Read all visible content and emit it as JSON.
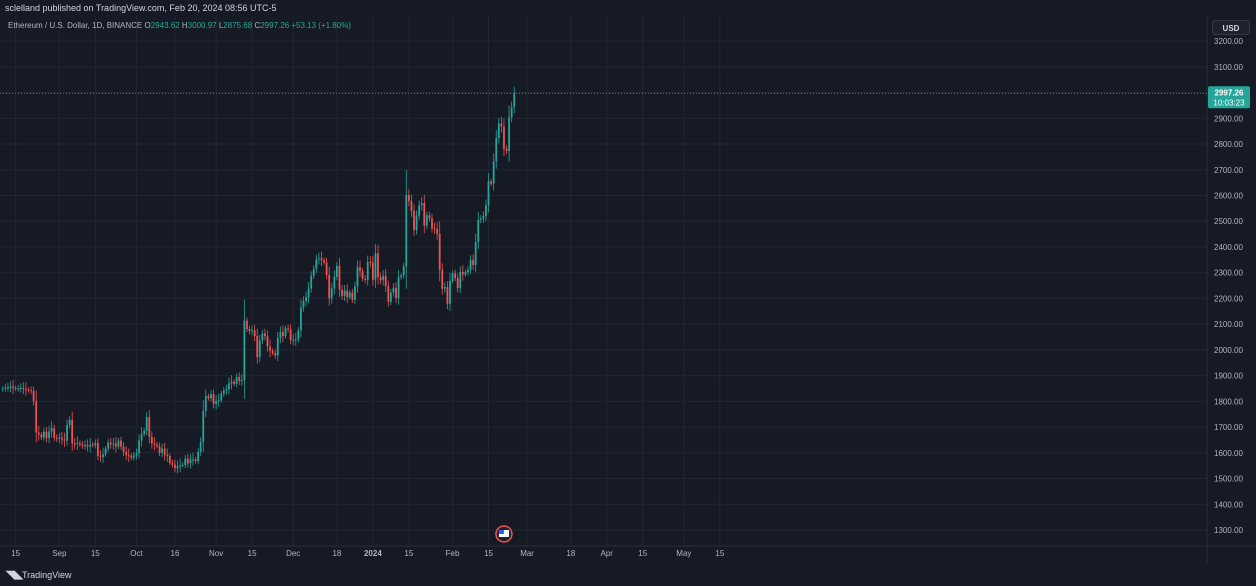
{
  "header": {
    "published_text": "sclelland published on TradingView.com, Feb 20, 2024 08:56 UTC-5"
  },
  "legend": {
    "symbol": "Ethereum / U.S. Dollar, 1D, BINANCE",
    "o_label": "O",
    "o_value": "2943.62",
    "h_label": "H",
    "h_value": "3000.97",
    "l_label": "L",
    "l_value": "2875.68",
    "c_label": "C",
    "c_value": "2997.26",
    "change": "+53.13 (+1.80%)"
  },
  "currency": "USD",
  "price_tag": {
    "price": "2997.26",
    "countdown": "10:03:23"
  },
  "footer": {
    "logo_icon": "tradingview-logo-icon",
    "brand": "TradingView"
  },
  "colors": {
    "background": "#161a25",
    "up": "#26a69a",
    "down": "#ef5350",
    "grid": "#232632",
    "text": "#b2b5be"
  },
  "chart_data": {
    "type": "candlestick",
    "y_ticks": [
      "1300.00",
      "1400.00",
      "1500.00",
      "1600.00",
      "1700.00",
      "1800.00",
      "1900.00",
      "2000.00",
      "2100.00",
      "2200.00",
      "2300.00",
      "2400.00",
      "2500.00",
      "2600.00",
      "2700.00",
      "2800.00",
      "2900.00",
      "3000.00",
      "3100.00",
      "3200.00"
    ],
    "ylim": [
      1300,
      3200
    ],
    "x_labels": [
      "15",
      "Sep",
      "15",
      "Oct",
      "16",
      "Nov",
      "15",
      "Dec",
      "18",
      "2024",
      "15",
      "Feb",
      "15",
      "Mar",
      "18",
      "Apr",
      "15",
      "May",
      "15"
    ],
    "x_range": [
      "2023-08-10",
      "2024-05-23"
    ],
    "closes": [
      1850,
      1854,
      1855,
      1857,
      1852,
      1850,
      1850,
      1852,
      1848,
      1846,
      1843,
      1840,
      1800,
      1679,
      1671,
      1659,
      1682,
      1657,
      1683,
      1696,
      1658,
      1655,
      1659,
      1652,
      1647,
      1708,
      1728,
      1636,
      1634,
      1638,
      1632,
      1628,
      1630,
      1625,
      1632,
      1630,
      1638,
      1588,
      1584,
      1594,
      1616,
      1640,
      1632,
      1636,
      1624,
      1648,
      1624,
      1604,
      1591,
      1588,
      1582,
      1590,
      1598,
      1648,
      1673,
      1686,
      1739,
      1662,
      1636,
      1632,
      1626,
      1600,
      1617,
      1591,
      1588,
      1560,
      1554,
      1540,
      1548,
      1552,
      1553,
      1577,
      1559,
      1574,
      1574,
      1568,
      1604,
      1642,
      1762,
      1820,
      1812,
      1828,
      1790,
      1802,
      1804,
      1830,
      1842,
      1847,
      1870,
      1876,
      1868,
      1894,
      1880,
      1883,
      2114,
      2080,
      2073,
      2076,
      2054,
      1972,
      2036,
      2064,
      2053,
      2013,
      1996,
      1988,
      1978,
      2046,
      2069,
      2054,
      2084,
      2080,
      2038,
      2039,
      2040,
      2076,
      2165,
      2190,
      2205,
      2238,
      2288,
      2315,
      2352,
      2356,
      2349,
      2340,
      2291,
      2200,
      2239,
      2284,
      2326,
      2234,
      2210,
      2230,
      2205,
      2223,
      2195,
      2246,
      2321,
      2307,
      2276,
      2272,
      2342,
      2340,
      2273,
      2375,
      2283,
      2271,
      2288,
      2248,
      2187,
      2223,
      2241,
      2201,
      2282,
      2289,
      2325,
      2602,
      2578,
      2540,
      2466,
      2522,
      2562,
      2571,
      2482,
      2523,
      2511,
      2472,
      2470,
      2451,
      2311,
      2238,
      2244,
      2179,
      2268,
      2298,
      2279,
      2240,
      2303,
      2293,
      2302,
      2311,
      2350,
      2330,
      2419,
      2505,
      2510,
      2520,
      2563,
      2655,
      2646,
      2733,
      2823,
      2880,
      2868,
      2781,
      2773,
      2904,
      2943,
      2997
    ]
  }
}
